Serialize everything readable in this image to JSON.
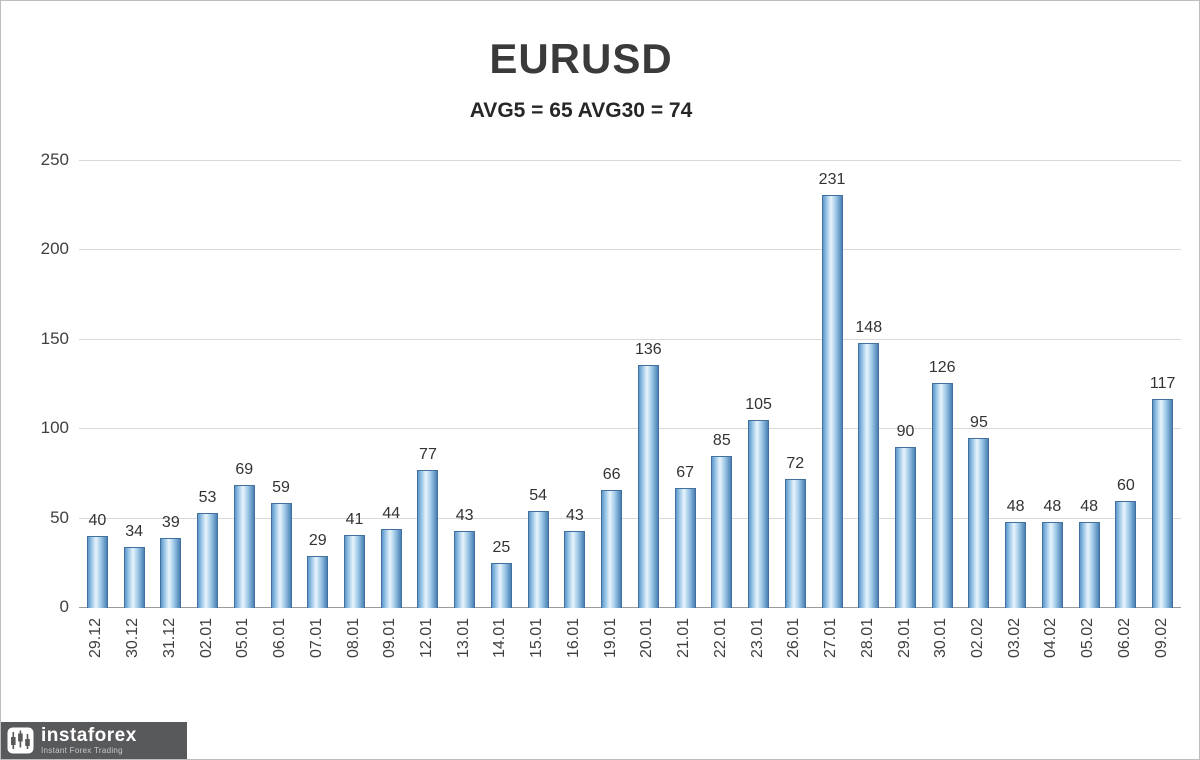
{
  "chart_data": {
    "type": "bar",
    "title": "EURUSD",
    "subtitle": "AVG5 = 65 AVG30 = 74",
    "categories": [
      "29.12",
      "30.12",
      "31.12",
      "02.01",
      "05.01",
      "06.01",
      "07.01",
      "08.01",
      "09.01",
      "12.01",
      "13.01",
      "14.01",
      "15.01",
      "16.01",
      "19.01",
      "20.01",
      "21.01",
      "22.01",
      "23.01",
      "26.01",
      "27.01",
      "28.01",
      "29.01",
      "30.01",
      "02.02",
      "03.02",
      "04.02",
      "05.02",
      "06.02",
      "09.02"
    ],
    "values": [
      40,
      34,
      39,
      53,
      69,
      59,
      29,
      41,
      44,
      77,
      43,
      25,
      54,
      43,
      66,
      136,
      67,
      85,
      105,
      72,
      231,
      148,
      90,
      126,
      95,
      48,
      48,
      48,
      60,
      117
    ],
    "ylim": [
      0,
      250
    ],
    "yticks": [
      0,
      50,
      100,
      150,
      200,
      250
    ],
    "grid": true,
    "legend": "none",
    "bar_color_center": "#e8f4fb",
    "bar_color_edge": "#5b9bd5",
    "bar_border_color": "#41719c"
  },
  "logo": {
    "name": "instaforex",
    "tagline": "Instant Forex Trading"
  }
}
